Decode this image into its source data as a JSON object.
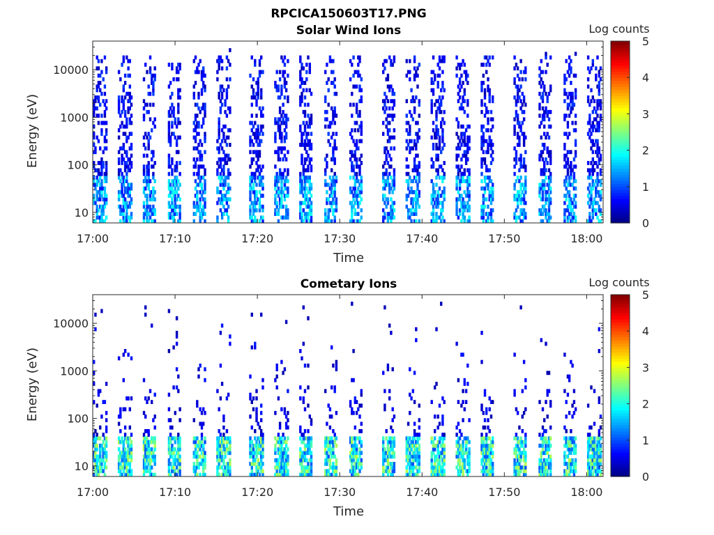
{
  "figure_title": "RPCICA150603T17.PNG",
  "chart_data": [
    {
      "type": "heatmap",
      "title": "Solar Wind Ions",
      "xlabel": "Time",
      "ylabel": "Energy (eV)",
      "x_ticks": [
        "17:00",
        "17:10",
        "17:20",
        "17:30",
        "17:40",
        "17:50",
        "18:00"
      ],
      "x_range": [
        "17:00",
        "18:02"
      ],
      "y_ticks": [
        10,
        100,
        1000,
        10000
      ],
      "y_range": [
        6,
        40000
      ],
      "y_scale": "log",
      "colorbar": {
        "label": "Log counts",
        "ticks": [
          0,
          1,
          2,
          3,
          4,
          5
        ],
        "range": [
          0,
          5
        ],
        "colormap": "jet"
      },
      "sweep_start_minutes": [
        0,
        3,
        6,
        9,
        12,
        15,
        19,
        22,
        25,
        28,
        31,
        35,
        38,
        41,
        44,
        47,
        51,
        54,
        57,
        60
      ],
      "description_values": {
        "low_energy_band_eV": [
          6,
          60
        ],
        "low_energy_peak_log_counts": 2.0,
        "high_energy_band_eV": [
          60,
          20000
        ],
        "high_energy_typical_log_counts": 0.5
      }
    },
    {
      "type": "heatmap",
      "title": "Cometary Ions",
      "xlabel": "Time",
      "ylabel": "Energy (eV)",
      "x_ticks": [
        "17:00",
        "17:10",
        "17:20",
        "17:30",
        "17:40",
        "17:50",
        "18:00"
      ],
      "x_range": [
        "17:00",
        "18:02"
      ],
      "y_ticks": [
        10,
        100,
        1000,
        10000
      ],
      "y_range": [
        6,
        40000
      ],
      "y_scale": "log",
      "colorbar": {
        "label": "Log counts",
        "ticks": [
          0,
          1,
          2,
          3,
          4,
          5
        ],
        "range": [
          0,
          5
        ],
        "colormap": "jet"
      },
      "sweep_start_minutes": [
        0,
        3,
        6,
        9,
        12,
        15,
        19,
        22,
        25,
        28,
        31,
        35,
        38,
        41,
        44,
        47,
        51,
        54,
        57,
        60
      ],
      "description_values": {
        "low_energy_band_eV": [
          6,
          45
        ],
        "low_energy_peak_log_counts": 2.8,
        "high_energy_band_eV": [
          45,
          10000
        ],
        "high_energy_typical_log_counts": 0.4
      }
    }
  ]
}
